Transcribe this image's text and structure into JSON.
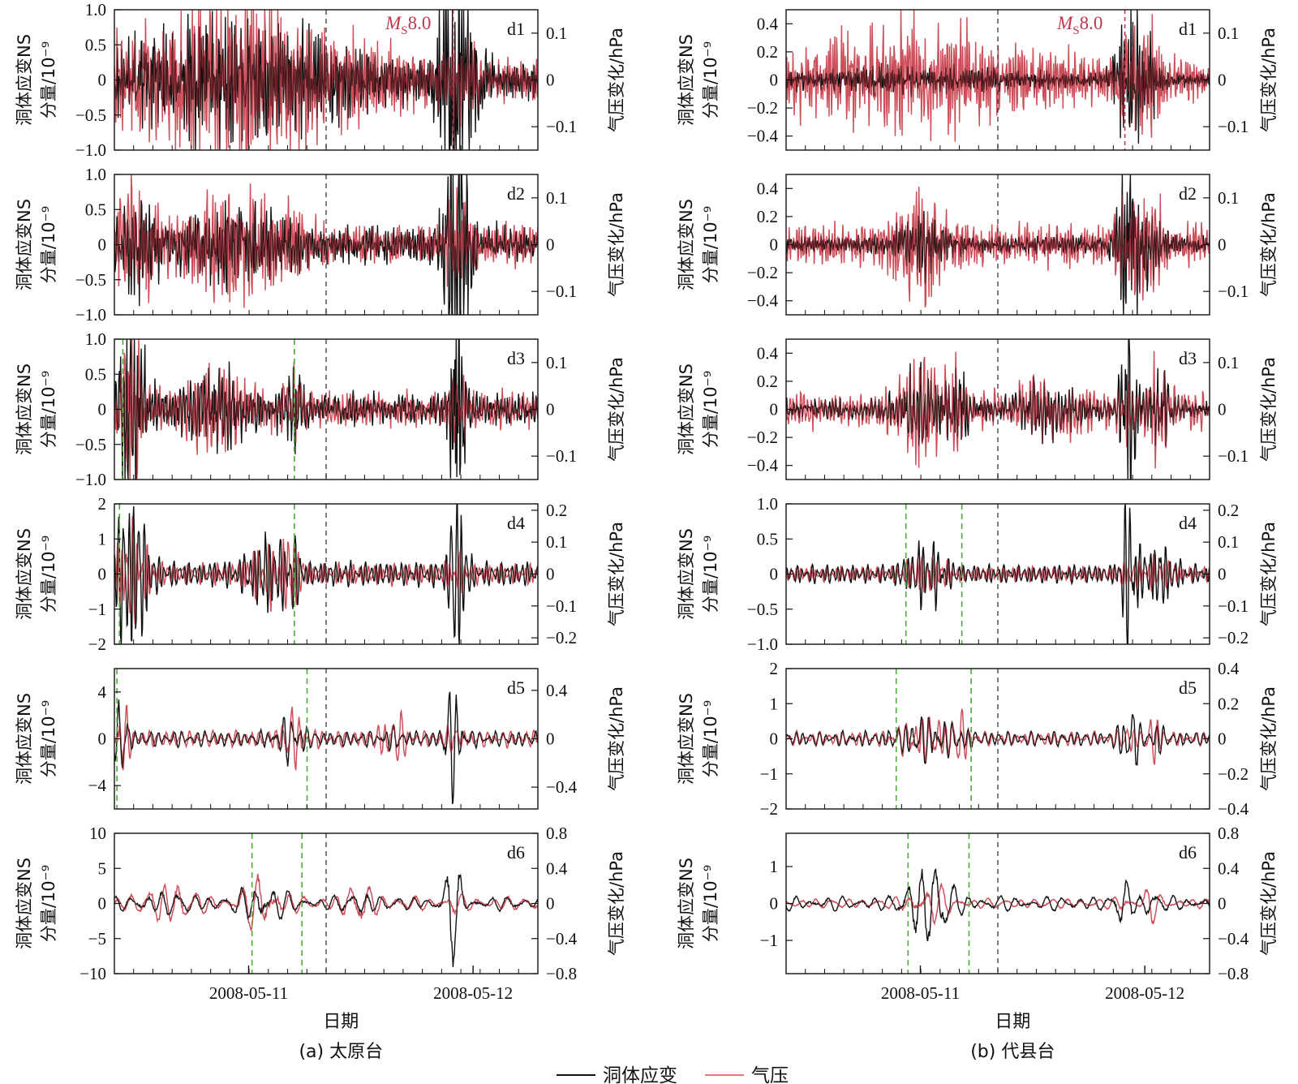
{
  "chart_data": {
    "type": "line",
    "x_ticks": [
      "2008-05-11",
      "2008-05-12"
    ],
    "xlabel": "日期",
    "ylabel_left": [
      "洞体应变NS",
      "分量/10⁻⁹"
    ],
    "ylabel_right": "气压变化/hPa",
    "legend": {
      "position": "bottom-center",
      "entries": [
        {
          "name": "洞体应变",
          "color": "#111111"
        },
        {
          "name": "气压",
          "color": "#e8747c"
        }
      ]
    },
    "event_label": {
      "prefix": "M",
      "sub": "S",
      "value": "8.0"
    },
    "grid": false,
    "stations": [
      {
        "caption": "(a) 太原台",
        "panels": [
          {
            "name": "d1",
            "left_range": [
              -1.0,
              1.0
            ],
            "left_ticks": [
              "1.0",
              "0.5",
              "0",
              "−0.5",
              "−1.0"
            ],
            "right_range": [
              -0.15,
              0.15
            ],
            "right_ticks": [
              "0.1",
              "0",
              "−0.1"
            ],
            "strain_amp": 0.22,
            "pressure_amp": 0.035,
            "freq": 3.2,
            "green_lines": [],
            "bursts": [
              [
                0.2,
                0.24,
                1.5,
                2.2
              ],
              [
                0.39,
                0.24,
                1.2,
                2.0
              ],
              [
                0.81,
                0.04,
                8.0,
                1.5
              ]
            ]
          },
          {
            "name": "d2",
            "left_range": [
              -1.0,
              1.0
            ],
            "left_ticks": [
              "1.0",
              "0.5",
              "0",
              "−0.5",
              "−1.0"
            ],
            "right_range": [
              -0.15,
              0.15
            ],
            "right_ticks": [
              "0.1",
              "0",
              "−0.1"
            ],
            "strain_amp": 0.2,
            "pressure_amp": 0.035,
            "freq": 2.6,
            "green_lines": [],
            "bursts": [
              [
                0.05,
                0.05,
                2.5,
                2.5
              ],
              [
                0.3,
                0.12,
                1.6,
                2.0
              ],
              [
                0.81,
                0.03,
                9.0,
                1.4
              ]
            ]
          },
          {
            "name": "d3",
            "left_range": [
              -1.0,
              1.0
            ],
            "left_ticks": [
              "1.0",
              "0.5",
              "0",
              "−0.5",
              "−1.0"
            ],
            "right_range": [
              -0.15,
              0.15
            ],
            "right_ticks": [
              "0.1",
              "0",
              "−0.1"
            ],
            "strain_amp": 0.18,
            "pressure_amp": 0.03,
            "freq": 2.0,
            "green_lines": [
              0.02,
              0.425
            ],
            "bursts": [
              [
                0.04,
                0.035,
                6.0,
                4.0
              ],
              [
                0.24,
                0.08,
                1.8,
                1.6
              ],
              [
                0.42,
                0.03,
                2.0,
                1.5
              ],
              [
                0.81,
                0.02,
                9.0,
                1.2
              ]
            ]
          },
          {
            "name": "d4",
            "left_range": [
              -2,
              2
            ],
            "left_ticks": [
              "2",
              "1",
              "0",
              "−1",
              "−2"
            ],
            "right_range": [
              -0.22,
              0.22
            ],
            "right_ticks": [
              "0.2",
              "0.1",
              "0",
              "−0.1",
              "−0.2"
            ],
            "strain_amp": 0.38,
            "pressure_amp": 0.035,
            "freq": 1.4,
            "green_lines": [
              0.012,
              0.425
            ],
            "bursts": [
              [
                0.04,
                0.04,
                6.5,
                4.0
              ],
              [
                0.36,
                0.05,
                2.5,
                2.2
              ],
              [
                0.42,
                0.02,
                2.0,
                3.5
              ],
              [
                0.81,
                0.02,
                8.0,
                1.2
              ]
            ]
          },
          {
            "name": "d5",
            "left_range": [
              -6,
              6
            ],
            "left_ticks": [
              "4",
              "0",
              "−4"
            ],
            "right_range": [
              -0.58,
              0.58
            ],
            "right_ticks": [
              "0.4",
              "0",
              "−0.4"
            ],
            "strain_amp": 0.7,
            "pressure_amp": 0.07,
            "freq": 0.9,
            "green_lines": [
              0.006,
              0.455
            ],
            "bursts": [
              [
                0.015,
                0.02,
                4.0,
                4.5
              ],
              [
                0.42,
                0.03,
                2.5,
                3.0
              ],
              [
                0.66,
                0.03,
                0.6,
                3.0
              ],
              [
                0.8,
                0.02,
                7.0,
                1.0
              ]
            ]
          },
          {
            "name": "d6",
            "left_range": [
              -10,
              10
            ],
            "left_ticks": [
              "10",
              "5",
              "0",
              "−5",
              "−10"
            ],
            "right_range": [
              -0.8,
              0.8
            ],
            "right_ticks": [
              "0.8",
              "0.4",
              "0",
              "−0.4",
              "−0.8"
            ],
            "strain_amp": 1.0,
            "pressure_amp": 0.08,
            "freq": 0.45,
            "green_lines": [
              0.325,
              0.443
            ],
            "bursts": [
              [
                0.13,
                0.06,
                1.0,
                2.8
              ],
              [
                0.35,
                0.05,
                3.0,
                3.5
              ],
              [
                0.58,
                0.04,
                1.0,
                2.5
              ],
              [
                0.8,
                0.02,
                7.0,
                1.0
              ]
            ]
          }
        ]
      },
      {
        "caption": "(b) 代县台",
        "panels": [
          {
            "name": "d1",
            "left_range": [
              -0.5,
              0.5
            ],
            "left_ticks": [
              "0.4",
              "0.2",
              "0",
              "−0.2",
              "−0.4"
            ],
            "right_range": [
              -0.15,
              0.15
            ],
            "right_ticks": [
              "0.1",
              "0",
              "−0.1"
            ],
            "strain_amp": 0.04,
            "pressure_amp": 0.04,
            "freq": 3.2,
            "green_lines": [],
            "bursts": [
              [
                0.3,
                0.25,
                1.3,
                1.6
              ],
              [
                0.81,
                0.035,
                9.0,
                1.4
              ],
              [
                0.86,
                0.025,
                4.0,
                1.6
              ]
            ]
          },
          {
            "name": "d2",
            "left_range": [
              -0.5,
              0.5
            ],
            "left_ticks": [
              "0.4",
              "0.2",
              "0",
              "−0.2",
              "−0.4"
            ],
            "right_range": [
              -0.15,
              0.15
            ],
            "right_ticks": [
              "0.1",
              "0",
              "−0.1"
            ],
            "strain_amp": 0.05,
            "pressure_amp": 0.035,
            "freq": 2.6,
            "green_lines": [],
            "bursts": [
              [
                0.32,
                0.06,
                3.0,
                2.2
              ],
              [
                0.81,
                0.03,
                9.0,
                1.4
              ],
              [
                0.86,
                0.03,
                3.5,
                2.0
              ]
            ]
          },
          {
            "name": "d3",
            "left_range": [
              -0.5,
              0.5
            ],
            "left_ticks": [
              "0.4",
              "0.2",
              "0",
              "−0.2",
              "−0.4"
            ],
            "right_range": [
              -0.15,
              0.15
            ],
            "right_ticks": [
              "0.1",
              "0",
              "−0.1"
            ],
            "strain_amp": 0.06,
            "pressure_amp": 0.03,
            "freq": 2.0,
            "green_lines": [],
            "bursts": [
              [
                0.32,
                0.06,
                3.0,
                2.4
              ],
              [
                0.41,
                0.02,
                4.0,
                1.6
              ],
              [
                0.62,
                0.08,
                1.8,
                1.2
              ],
              [
                0.81,
                0.02,
                9.0,
                1.3
              ],
              [
                0.88,
                0.03,
                3.0,
                2.0
              ]
            ]
          },
          {
            "name": "d4",
            "left_range": [
              -1.0,
              1.0
            ],
            "left_ticks": [
              "1.0",
              "0.5",
              "0",
              "−0.5",
              "−1.0"
            ],
            "right_range": [
              -0.22,
              0.22
            ],
            "right_ticks": [
              "0.2",
              "0.1",
              "0",
              "−0.1",
              "−0.2"
            ],
            "strain_amp": 0.14,
            "pressure_amp": 0.025,
            "freq": 1.4,
            "green_lines": [
              0.283,
              0.415
            ],
            "bursts": [
              [
                0.33,
                0.05,
                3.0,
                2.0
              ],
              [
                0.81,
                0.02,
                9.0,
                1.2
              ],
              [
                0.88,
                0.04,
                3.0,
                1.5
              ]
            ]
          },
          {
            "name": "d5",
            "left_range": [
              -2,
              2
            ],
            "left_ticks": [
              "2",
              "1",
              "0",
              "−1",
              "−2"
            ],
            "right_range": [
              -0.4,
              0.4
            ],
            "right_ticks": [
              "0.4",
              "0.2",
              "0",
              "−0.2",
              "−0.4"
            ],
            "strain_amp": 0.22,
            "pressure_amp": 0.04,
            "freq": 0.9,
            "green_lines": [
              0.26,
              0.437
            ],
            "bursts": [
              [
                0.33,
                0.06,
                2.5,
                3.0
              ],
              [
                0.41,
                0.02,
                1.5,
                3.5
              ],
              [
                0.81,
                0.02,
                6.0,
                1.5
              ],
              [
                0.87,
                0.02,
                2.0,
                3.0
              ]
            ]
          },
          {
            "name": "d6",
            "left_range": [
              -1.9,
              1.9
            ],
            "left_ticks": [
              "1",
              "0",
              "−1"
            ],
            "right_range": [
              -0.8,
              0.8
            ],
            "right_ticks": [
              "0.8",
              "0.4",
              "0",
              "−0.4",
              "−0.8"
            ],
            "strain_amp": 0.2,
            "pressure_amp": 0.06,
            "freq": 0.45,
            "green_lines": [
              0.288,
              0.432
            ],
            "bursts": [
              [
                0.34,
                0.05,
                6.5,
                3.0
              ],
              [
                0.8,
                0.02,
                3.0,
                1.5
              ],
              [
                0.86,
                0.02,
                1.5,
                3.0
              ]
            ]
          }
        ]
      }
    ]
  }
}
